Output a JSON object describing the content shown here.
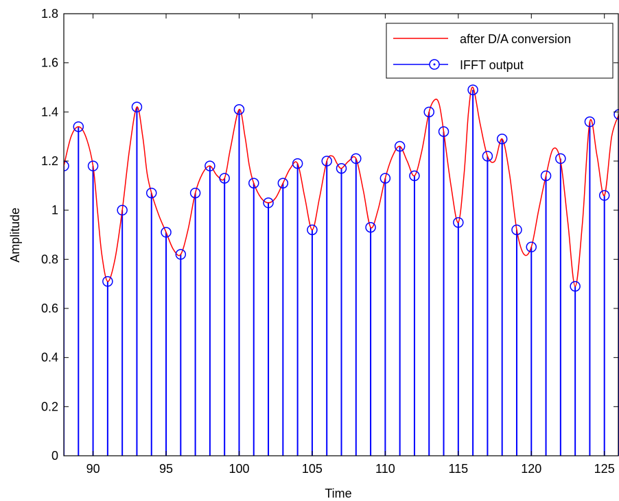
{
  "chart_data": {
    "type": "line",
    "title": "",
    "xlabel": "Time",
    "ylabel": "Amplitude",
    "xlim": [
      88,
      126
    ],
    "ylim": [
      0,
      1.8
    ],
    "xticks": [
      90,
      95,
      100,
      105,
      110,
      115,
      120,
      125
    ],
    "yticks": [
      0,
      0.2,
      0.4,
      0.6,
      0.8,
      1,
      1.2,
      1.4,
      1.6,
      1.8
    ],
    "ytick_labels": [
      "0",
      "0.2",
      "0.4",
      "0.6",
      "0.8",
      "1",
      "1.2",
      "1.4",
      "1.6",
      "1.8"
    ],
    "xtick_labels": [
      "90",
      "95",
      "100",
      "105",
      "110",
      "115",
      "120",
      "125"
    ],
    "legend_position": "top-right",
    "grid": false,
    "series": [
      {
        "name": "after D/A conversion",
        "style": "line",
        "color": "#ff0000",
        "x": [
          88,
          88.5,
          89,
          89.5,
          90,
          90.3,
          90.6,
          91,
          91.5,
          92,
          92.5,
          93,
          93.4,
          93.7,
          94,
          94.5,
          95,
          95.5,
          96,
          96.5,
          97,
          97.5,
          98,
          98.5,
          99,
          99.4,
          100,
          100.4,
          100.7,
          101,
          101.5,
          102,
          102.5,
          103,
          103.5,
          104,
          104.5,
          105,
          105.5,
          106,
          106.4,
          106.7,
          107,
          107.5,
          108,
          108.5,
          109,
          109.5,
          110,
          110.5,
          111,
          111.5,
          112,
          112.5,
          113,
          113.4,
          113.7,
          114,
          114.5,
          115,
          115.4,
          115.7,
          116,
          116.5,
          117,
          117.5,
          118,
          118.5,
          119,
          119.5,
          120,
          120.5,
          121,
          121.5,
          122,
          122.5,
          123,
          123.5,
          124,
          124.5,
          125,
          125.5,
          126
        ],
        "y": [
          1.18,
          1.3,
          1.34,
          1.3,
          1.18,
          1.0,
          0.82,
          0.71,
          0.8,
          1.0,
          1.25,
          1.42,
          1.3,
          1.15,
          1.07,
          0.98,
          0.91,
          0.84,
          0.82,
          0.92,
          1.07,
          1.15,
          1.18,
          1.14,
          1.13,
          1.25,
          1.41,
          1.3,
          1.18,
          1.11,
          1.05,
          1.03,
          1.05,
          1.11,
          1.17,
          1.19,
          1.05,
          0.92,
          1.05,
          1.2,
          1.22,
          1.19,
          1.17,
          1.2,
          1.21,
          1.08,
          0.93,
          1.0,
          1.13,
          1.22,
          1.26,
          1.2,
          1.14,
          1.24,
          1.4,
          1.45,
          1.43,
          1.32,
          1.1,
          0.95,
          1.15,
          1.4,
          1.5,
          1.35,
          1.22,
          1.2,
          1.29,
          1.15,
          0.92,
          0.82,
          0.85,
          1.0,
          1.14,
          1.25,
          1.2,
          0.95,
          0.69,
          0.95,
          1.36,
          1.22,
          1.06,
          1.3,
          1.39
        ]
      },
      {
        "name": "IFFT output",
        "style": "stem",
        "color": "#0000ff",
        "marker_color": "#0000ff",
        "x": [
          88,
          89,
          90,
          91,
          92,
          93,
          94,
          95,
          96,
          97,
          98,
          99,
          100,
          101,
          102,
          103,
          104,
          105,
          106,
          107,
          108,
          109,
          110,
          111,
          112,
          113,
          114,
          115,
          116,
          117,
          118,
          119,
          120,
          121,
          122,
          123,
          124,
          125,
          126
        ],
        "y": [
          1.18,
          1.34,
          1.18,
          0.71,
          1.0,
          1.42,
          1.07,
          0.91,
          0.82,
          1.07,
          1.18,
          1.13,
          1.41,
          1.11,
          1.03,
          1.11,
          1.19,
          0.92,
          1.2,
          1.17,
          1.21,
          0.93,
          1.13,
          1.26,
          1.14,
          1.4,
          1.32,
          0.95,
          1.49,
          1.22,
          1.29,
          0.92,
          0.85,
          1.14,
          1.21,
          0.69,
          1.36,
          1.06,
          1.39
        ]
      }
    ]
  },
  "colors": {
    "axis": "#000000",
    "background": "#ffffff",
    "legend_border": "#000000"
  }
}
